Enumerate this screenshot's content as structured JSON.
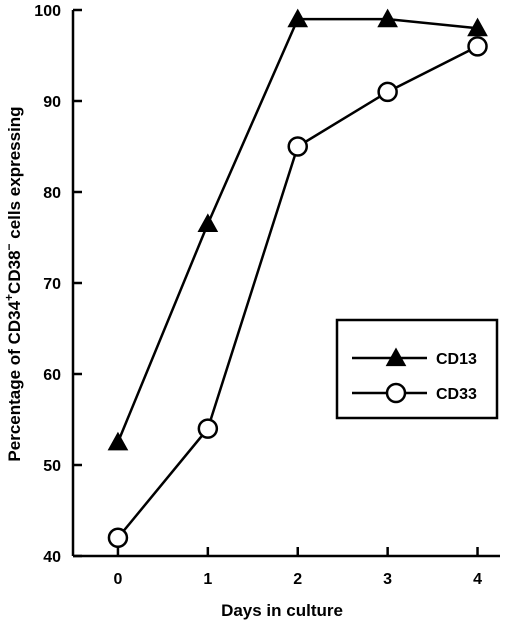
{
  "chart_data": {
    "type": "line",
    "title": "",
    "xlabel": "Days in culture",
    "ylabel_parts": [
      "Percentage of CD34",
      "+",
      "CD38",
      "−",
      " cells expressing"
    ],
    "x": [
      0,
      1,
      2,
      3,
      4
    ],
    "x_ticks": [
      "0",
      "1",
      "2",
      "3",
      "4"
    ],
    "y_ticks": [
      "40",
      "50",
      "60",
      "70",
      "80",
      "90",
      "100"
    ],
    "xlim": [
      -0.5,
      4.25
    ],
    "ylim": [
      40,
      100
    ],
    "grid": false,
    "legend_position": "center-right",
    "series": [
      {
        "name": "CD13",
        "marker": "filled-triangle",
        "values": [
          52.5,
          76.5,
          99,
          99,
          98
        ]
      },
      {
        "name": "CD33",
        "marker": "open-circle",
        "values": [
          42,
          54,
          85,
          91,
          96
        ]
      }
    ]
  }
}
